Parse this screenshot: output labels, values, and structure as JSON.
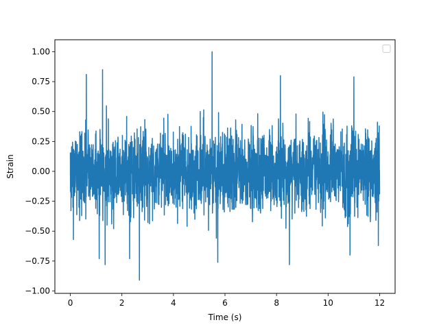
{
  "chart_data": {
    "type": "line",
    "title": "",
    "xlabel": "Time (s)",
    "ylabel": "Strain",
    "xlim": [
      -0.6,
      12.6
    ],
    "ylim": [
      -1.02,
      1.1
    ],
    "xticks": [
      0,
      2,
      4,
      6,
      8,
      10,
      12
    ],
    "xtick_labels": [
      "0",
      "2",
      "4",
      "6",
      "8",
      "10",
      "12"
    ],
    "yticks": [
      -1.0,
      -0.75,
      -0.5,
      -0.25,
      0.0,
      0.25,
      0.5,
      0.75,
      1.0
    ],
    "ytick_labels": [
      "−1.00",
      "−0.75",
      "−0.50",
      "−0.25",
      "0.00",
      "0.25",
      "0.50",
      "0.75",
      "1.00"
    ],
    "grid": false,
    "legend": {
      "position": "upper-right",
      "entries": []
    },
    "series": [
      {
        "color": "#1f77b4",
        "x_start": 0,
        "x_end": 12,
        "y_min": -0.91,
        "y_max": 1.0,
        "peaks": [
          {
            "x": 0.62,
            "y": 0.81
          },
          {
            "x": 1.25,
            "y": 0.85
          },
          {
            "x": 2.68,
            "y": -0.91
          },
          {
            "x": 1.12,
            "y": -0.73
          },
          {
            "x": 1.35,
            "y": -0.78
          },
          {
            "x": 2.3,
            "y": -0.73
          },
          {
            "x": 5.5,
            "y": 1.0
          },
          {
            "x": 5.72,
            "y": -0.76
          },
          {
            "x": 8.15,
            "y": 0.8
          },
          {
            "x": 8.5,
            "y": -0.78
          },
          {
            "x": 11.0,
            "y": 0.79
          },
          {
            "x": 10.85,
            "y": -0.7
          },
          {
            "x": 11.95,
            "y": -0.62
          },
          {
            "x": 0.12,
            "y": -0.57
          }
        ]
      }
    ]
  }
}
